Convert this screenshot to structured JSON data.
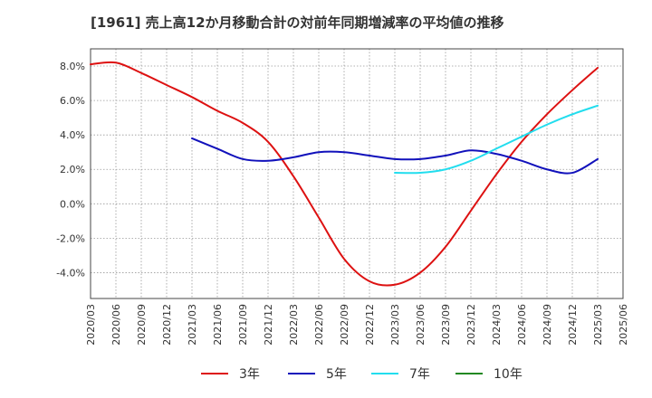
{
  "chart_data": {
    "type": "line",
    "title": "[1961]  売上高12か月移動合計の対前年同期増減率の平均値の推移",
    "xlabel": "",
    "ylabel": "",
    "ylim": [
      -5.5,
      9.0
    ],
    "grid": true,
    "legend_position": "bottom",
    "y_ticks": [
      "8.0%",
      "6.0%",
      "4.0%",
      "2.0%",
      "0.0%",
      "-2.0%",
      "-4.0%"
    ],
    "y_tick_values": [
      8,
      6,
      4,
      2,
      0,
      -2,
      -4
    ],
    "x_ticks": [
      "2020/03",
      "2020/06",
      "2020/09",
      "2020/12",
      "2021/03",
      "2021/06",
      "2021/09",
      "2021/12",
      "2022/03",
      "2022/06",
      "2022/09",
      "2022/12",
      "2023/03",
      "2023/06",
      "2023/09",
      "2023/12",
      "2024/03",
      "2024/06",
      "2024/09",
      "2024/12",
      "2025/03",
      "2025/06"
    ],
    "series": [
      {
        "name": "3年",
        "color": "#dd1111",
        "x": [
          "2020/03",
          "2020/06",
          "2020/09",
          "2020/12",
          "2021/03",
          "2021/06",
          "2021/09",
          "2021/12",
          "2022/03",
          "2022/06",
          "2022/09",
          "2022/12",
          "2023/03",
          "2023/06",
          "2023/09",
          "2023/12",
          "2024/03",
          "2024/06",
          "2024/09",
          "2024/12",
          "2025/03"
        ],
        "values": [
          8.1,
          8.2,
          7.6,
          6.9,
          6.2,
          5.4,
          4.7,
          3.6,
          1.6,
          -0.8,
          -3.2,
          -4.5,
          -4.7,
          -4.0,
          -2.5,
          -0.4,
          1.7,
          3.6,
          5.2,
          6.6,
          7.9
        ]
      },
      {
        "name": "5年",
        "color": "#1111bb",
        "x": [
          "2021/03",
          "2021/06",
          "2021/09",
          "2021/12",
          "2022/03",
          "2022/06",
          "2022/09",
          "2022/12",
          "2023/03",
          "2023/06",
          "2023/09",
          "2023/12",
          "2024/03",
          "2024/06",
          "2024/09",
          "2024/12",
          "2025/03"
        ],
        "values": [
          3.8,
          3.2,
          2.6,
          2.5,
          2.7,
          3.0,
          3.0,
          2.8,
          2.6,
          2.6,
          2.8,
          3.1,
          2.9,
          2.5,
          2.0,
          1.8,
          2.6
        ]
      },
      {
        "name": "7年",
        "color": "#22ddee",
        "x": [
          "2023/03",
          "2023/06",
          "2023/09",
          "2023/12",
          "2024/03",
          "2024/06",
          "2024/09",
          "2024/12",
          "2025/03"
        ],
        "values": [
          1.8,
          1.8,
          2.0,
          2.5,
          3.2,
          3.9,
          4.6,
          5.2,
          5.7
        ]
      },
      {
        "name": "10年",
        "color": "#228822",
        "x": [],
        "values": []
      }
    ]
  }
}
